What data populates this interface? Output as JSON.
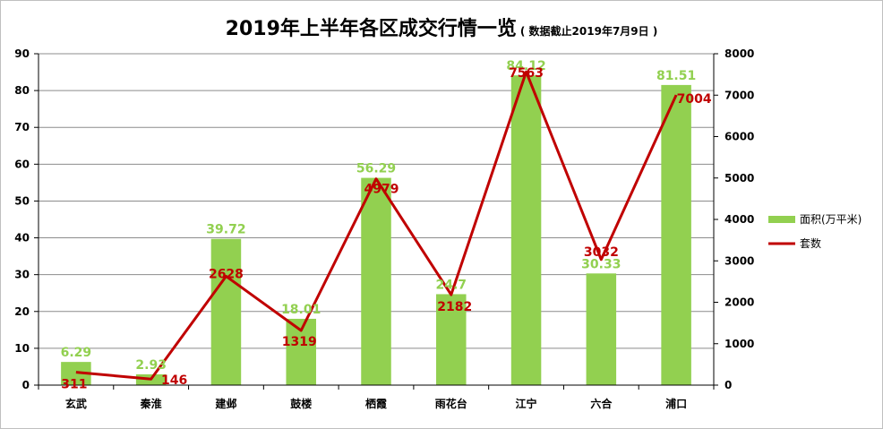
{
  "title": "2019年上半年各区成交行情一览",
  "subtitle": "( 数据截止2019年7月9日 )",
  "colors": {
    "bar": "#92d050",
    "line": "#c00000",
    "grid": "#8c8c8c",
    "axis": "#000000"
  },
  "chart_data": {
    "type": "bar",
    "categories": [
      "玄武",
      "秦淮",
      "建邺",
      "鼓楼",
      "栖霞",
      "雨花台",
      "江宁",
      "六合",
      "浦口"
    ],
    "series": [
      {
        "name": "面积(万平米)",
        "type": "bar",
        "axis": "left",
        "values": [
          6.29,
          2.93,
          39.72,
          18.01,
          56.29,
          24.7,
          84.12,
          30.33,
          81.51
        ],
        "labels": [
          "6.29",
          "2.93",
          "39.72",
          "18.01",
          "56.29",
          "24.7",
          "84.12",
          "30.33",
          "81.51"
        ]
      },
      {
        "name": "套数",
        "type": "line",
        "axis": "right",
        "values": [
          311,
          146,
          2628,
          1319,
          4979,
          2182,
          7563,
          3032,
          7004
        ],
        "labels": [
          "311",
          "146",
          "2628",
          "1319",
          "4979",
          "2182",
          "7563",
          "3032",
          "7004"
        ]
      }
    ],
    "y_left": {
      "min": 0,
      "max": 90,
      "step": 10,
      "ticks": [
        "0",
        "10",
        "20",
        "30",
        "40",
        "50",
        "60",
        "70",
        "80",
        "90"
      ]
    },
    "y_right": {
      "min": 0,
      "max": 8000,
      "step": 1000,
      "ticks": [
        "0",
        "1000",
        "2000",
        "3000",
        "4000",
        "5000",
        "6000",
        "7000",
        "8000"
      ]
    },
    "grid": true,
    "legend": "right"
  }
}
